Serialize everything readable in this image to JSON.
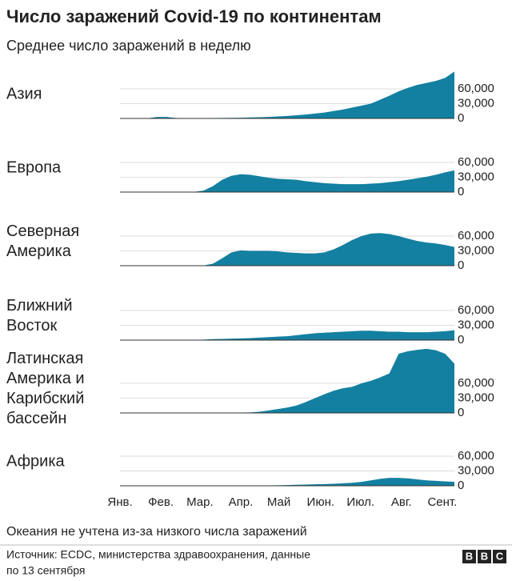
{
  "title": "Число заражений Covid-19 по континентам",
  "subtitle": "Среднее число заражений в неделю",
  "note": "Океания не учтена из-за низкого числа заражений",
  "source": [
    "Источник: ECDC, министерства здравоохранения, данные",
    "по 13 сентября"
  ],
  "logo": [
    "B",
    "B",
    "C"
  ],
  "xaxis": {
    "xlim": [
      0,
      36
    ],
    "xticks": [
      {
        "value": 0,
        "label": "Янв."
      },
      {
        "value": 4.4,
        "label": "Фев."
      },
      {
        "value": 8.6,
        "label": "Мар."
      },
      {
        "value": 13,
        "label": "Апр."
      },
      {
        "value": 17.1,
        "label": "Май"
      },
      {
        "value": 21.6,
        "label": "Июн."
      },
      {
        "value": 25.9,
        "label": "Июл."
      },
      {
        "value": 30.3,
        "label": "Авг."
      },
      {
        "value": 34.7,
        "label": "Сент."
      }
    ]
  },
  "chart_data": [
    {
      "type": "area",
      "label": [
        "Азия"
      ],
      "color": "#1380a1",
      "ylim": [
        0,
        135000
      ],
      "grid": true,
      "yticks": [
        0,
        {
          "value": 30000,
          "label": "30,000"
        },
        {
          "value": 60000,
          "label": "60,000"
        }
      ],
      "values": [
        0,
        0,
        0,
        500,
        3000,
        3000,
        1000,
        500,
        500,
        500,
        800,
        1000,
        1200,
        1500,
        2000,
        2500,
        3000,
        4000,
        5000,
        6500,
        8000,
        10000,
        12000,
        15000,
        18000,
        22000,
        26000,
        30000,
        38000,
        46000,
        55000,
        62000,
        68000,
        72000,
        76000,
        82000,
        95000
      ]
    },
    {
      "type": "area",
      "label": [
        "Европа"
      ],
      "color": "#1380a1",
      "ylim": [
        0,
        135000
      ],
      "grid": true,
      "yticks": [
        0,
        {
          "value": 30000,
          "label": "30,000"
        },
        {
          "value": 60000,
          "label": "60,000"
        }
      ],
      "values": [
        0,
        0,
        0,
        0,
        0,
        0,
        0,
        0,
        500,
        3000,
        12000,
        25000,
        33000,
        36000,
        35000,
        32000,
        29000,
        27000,
        26000,
        25000,
        22000,
        20000,
        18000,
        17000,
        16000,
        16000,
        16000,
        17000,
        18000,
        20000,
        22000,
        25000,
        28000,
        31000,
        35000,
        40000,
        44000
      ]
    },
    {
      "type": "area",
      "label": [
        "Северная",
        "Америка"
      ],
      "color": "#1380a1",
      "ylim": [
        0,
        135000
      ],
      "grid": true,
      "yticks": [
        0,
        {
          "value": 30000,
          "label": "30,000"
        },
        {
          "value": 60000,
          "label": "60,000"
        }
      ],
      "values": [
        0,
        0,
        0,
        0,
        0,
        0,
        0,
        0,
        0,
        500,
        4000,
        15000,
        27000,
        31000,
        30000,
        30000,
        30000,
        29000,
        27000,
        26000,
        25000,
        25000,
        27000,
        33000,
        42000,
        52000,
        60000,
        65000,
        66000,
        64000,
        60000,
        55000,
        50000,
        47000,
        45000,
        42000,
        38000
      ]
    },
    {
      "type": "area",
      "label": [
        "Ближний",
        "Восток"
      ],
      "color": "#1380a1",
      "ylim": [
        0,
        135000
      ],
      "grid": true,
      "yticks": [
        0,
        {
          "value": 30000,
          "label": "30,000"
        },
        {
          "value": 60000,
          "label": "60,000"
        }
      ],
      "values": [
        0,
        0,
        0,
        0,
        0,
        0,
        0,
        0,
        500,
        1000,
        2000,
        2500,
        3000,
        3500,
        4000,
        5000,
        6000,
        7000,
        8000,
        10000,
        12000,
        14000,
        15000,
        16000,
        17000,
        18000,
        19000,
        19000,
        18000,
        17000,
        17000,
        16000,
        16000,
        16000,
        17000,
        18000,
        20000
      ]
    },
    {
      "type": "area",
      "label": [
        "Латинская",
        "Америка и",
        "Карибский",
        "бассейн"
      ],
      "color": "#1380a1",
      "ylim": [
        0,
        135000
      ],
      "grid": true,
      "yticks": [
        0,
        {
          "value": 30000,
          "label": "30,000"
        },
        {
          "value": 60000,
          "label": "60,000"
        }
      ],
      "values": [
        0,
        0,
        0,
        0,
        0,
        0,
        0,
        0,
        0,
        0,
        0,
        300,
        500,
        800,
        1000,
        2500,
        5000,
        8000,
        11000,
        15000,
        22000,
        30000,
        38000,
        45000,
        50000,
        53000,
        60000,
        65000,
        72000,
        80000,
        120000,
        125000,
        128000,
        130000,
        127000,
        120000,
        100000
      ]
    },
    {
      "type": "area",
      "label": [
        "Африка"
      ],
      "color": "#1380a1",
      "ylim": [
        0,
        135000
      ],
      "grid": true,
      "yticks": [
        0,
        {
          "value": 30000,
          "label": "30,000"
        },
        {
          "value": 60000,
          "label": "60,000"
        }
      ],
      "values": [
        0,
        0,
        0,
        0,
        0,
        0,
        0,
        0,
        0,
        0,
        0,
        0,
        0,
        200,
        400,
        600,
        800,
        1000,
        1500,
        2000,
        2500,
        3000,
        3500,
        4000,
        5000,
        6000,
        8000,
        11000,
        14000,
        16000,
        16000,
        15000,
        13000,
        11000,
        10000,
        9000,
        8000
      ]
    }
  ]
}
